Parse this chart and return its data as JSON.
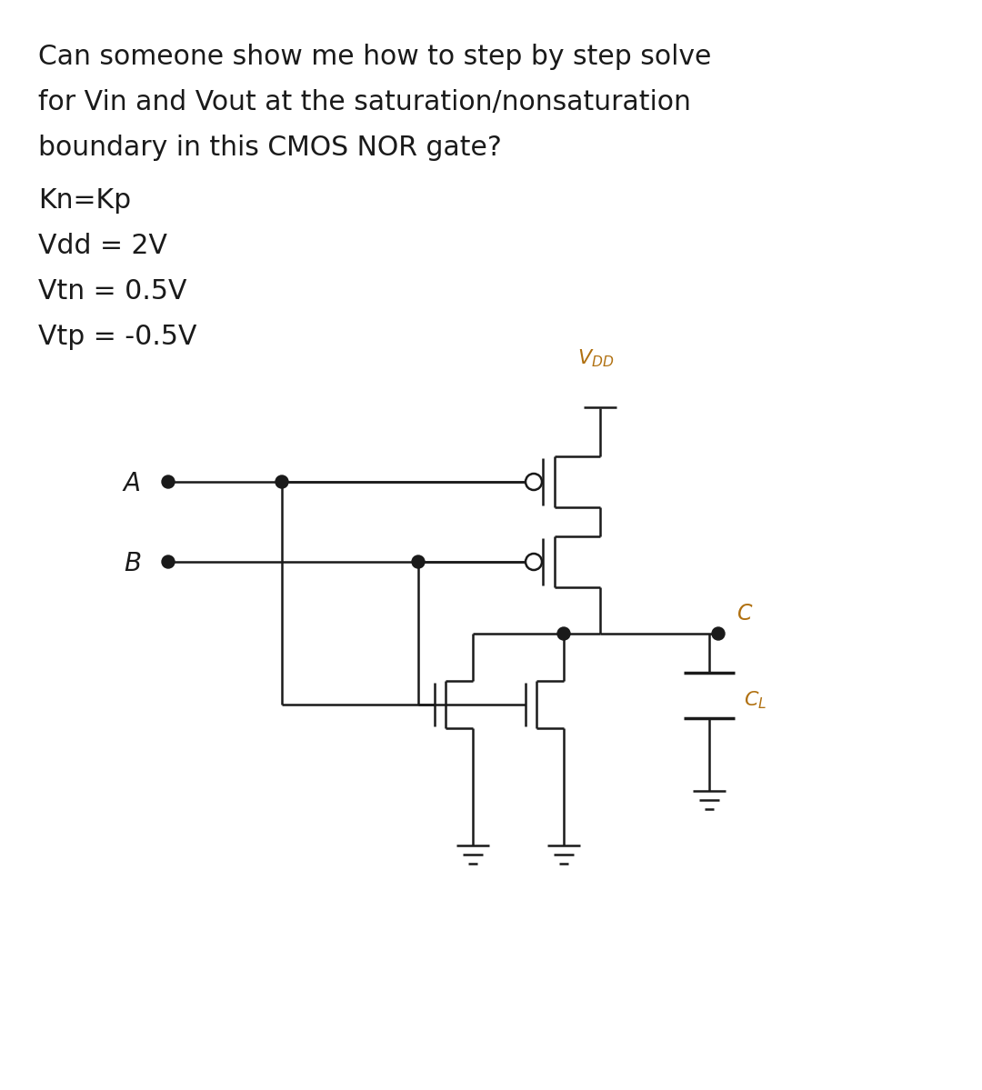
{
  "title_lines": [
    "Can someone show me how to step by step solve",
    "for Vin and Vout at the saturation/nonsaturation",
    "boundary in this CMOS NOR gate?"
  ],
  "param_lines": [
    "Kn=Kp",
    "Vdd = 2V",
    "Vtn = 0.5V",
    "Vtp = -0.5V"
  ],
  "text_color": "#1a1a1a",
  "circuit_color": "#1a1a1a",
  "vdd_label_color": "#b07010",
  "C_label_color": "#b07010",
  "CL_label_color": "#b07010",
  "bg_color": "#ffffff",
  "fig_width": 10.8,
  "fig_height": 11.99
}
